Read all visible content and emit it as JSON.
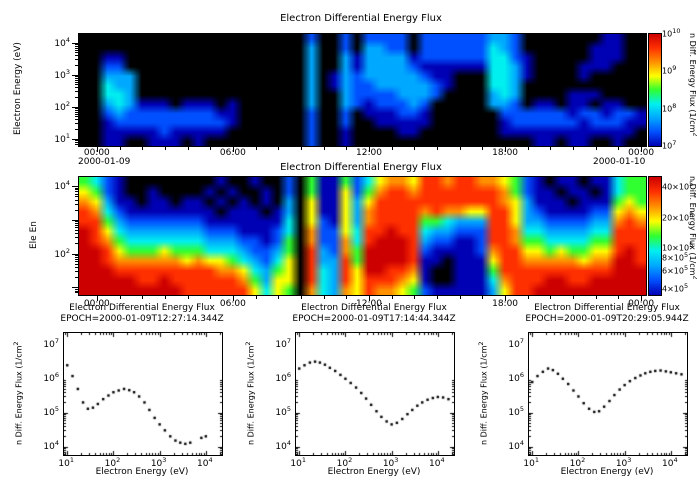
{
  "page": {
    "background": "#ffffff",
    "text_color": "#000000"
  },
  "palette": [
    "#0000b4",
    "#0050ff",
    "#00a8ff",
    "#00f0f0",
    "#30ff30",
    "#ffff00",
    "#ff9000",
    "#ff3000",
    "#cc0000"
  ],
  "chart_data": [
    {
      "id": "top_spectrogram",
      "type": "heatmap",
      "title": "Electron Differential Energy Flux",
      "ylabel": "Electron Energy (eV)",
      "y_axis": {
        "scale": "log",
        "unit": "eV",
        "ticks_exp": [
          4,
          3,
          2,
          1
        ],
        "range_exp": [
          0.8,
          4.3
        ]
      },
      "x_axis": {
        "range_hours": [
          -0.83,
          24.17
        ],
        "ticks": [
          {
            "hour": 0,
            "label": "00:00",
            "date": "2000-01-09"
          },
          {
            "hour": 6,
            "label": "06:00"
          },
          {
            "hour": 12,
            "label": "12:00"
          },
          {
            "hour": 18,
            "label": "18:00"
          },
          {
            "hour": 24,
            "label": "00:00",
            "date": "2000-01-10"
          }
        ]
      },
      "colorbar": {
        "label_text": "n Diff. Energy Flux (1/cm",
        "label_sup": "2",
        "ticks": [
          {
            "mant": null,
            "exp": 10,
            "frac_top": 0.0
          },
          {
            "mant": null,
            "exp": 9,
            "frac_top": 0.333
          },
          {
            "mant": null,
            "exp": 8,
            "frac_top": 0.667
          },
          {
            "mant": null,
            "exp": 7,
            "frac_top": 1.0
          }
        ]
      },
      "grid": [
        "00000000000000000000200202222022222233200000001100",
        "00000000000000000000300203322022222243200000011100",
        "00110000000000000000300313333122222244210000011100",
        "00220000000000000000300313333211111144310000111000",
        "00333000000000000000301323333321100044310000100000",
        "00433000000000000000301322333332100044300000000000",
        "00443000000000000000300322223332000034300001110000",
        "00343111011101000000300321222320000033201101101100",
        "00232222222211000000200201112210000002222221221221",
        "00122222222221000000200200111110000001222222122211",
        "00111112111110000000200100001100000001111111111110",
        "00110011101000000000200100000000000000001101100100"
      ]
    },
    {
      "id": "middle_spectrogram",
      "type": "heatmap",
      "title": "Electron Differential Energy Flux",
      "ylabel": "Ele En",
      "y_axis": {
        "scale": "log",
        "unit": "eV",
        "ticks_exp": [
          4,
          2
        ],
        "range_exp": [
          0.8,
          4.3
        ]
      },
      "x_axis": {
        "range_hours": [
          -0.83,
          24.17
        ],
        "ticks": [
          {
            "hour": 0,
            "label": "00:00"
          },
          {
            "hour": 6,
            "label": "06:00"
          },
          {
            "hour": 12,
            "label": "12:00"
          },
          {
            "hour": 18,
            "label": "18:00"
          },
          {
            "hour": 24,
            "label": "00:00"
          }
        ]
      },
      "colorbar": {
        "label_text": "n Diff. Energy Flux (1/cm",
        "label_sup": "2",
        "ticks": [
          {
            "mant": 40,
            "exp": 5,
            "frac_top": 0.084
          },
          {
            "mant": 20,
            "exp": 5,
            "frac_top": 0.345
          },
          {
            "mant": 10,
            "exp": 5,
            "frac_top": 0.605
          },
          {
            "mant": 8,
            "exp": 5,
            "frac_top": 0.689
          },
          {
            "mant": 6,
            "exp": 5,
            "frac_top": 0.797
          },
          {
            "mant": 4,
            "exp": 5,
            "frac_top": 0.95
          }
        ]
      },
      "grid": [
        "54210000000010010020511524677688788776521011011455",
        "65210010000101001020511625788788888887521101101455",
        "76311011011010101030611636888888888887631110111565",
        "87421111111101110130611637888878776688632111122676",
        "88532222222111111140621637888855433388633222233787",
        "98643333333222111240722648898843322288744333344888",
        "98754444444333221250722748999832211288755444455888",
        "99865556555444322350832759999821111278866565566898",
        "99877777767665432460833859999811011168877777677998",
        "99988888888877643560843869988710011158888888888999",
        "99999889888888753660843868887610011147888998899999",
        "99999999988888864650743768776521111136889999999999"
      ]
    },
    {
      "id": "spectrum_1",
      "type": "scatter",
      "title": "Electron Differential Energy Flux",
      "subtitle": "EPOCH=2000-01-09T12:27:14.344Z",
      "xlabel": "Electron Energy (eV)",
      "ylabel_text": "n Diff. Energy Flux (1/cm",
      "ylabel_sup": "2",
      "x_axis": {
        "scale": "log",
        "ticks_exp": [
          1,
          2,
          3,
          4
        ],
        "range_exp": [
          0.93,
          4.35
        ]
      },
      "y_axis": {
        "scale": "log",
        "ticks_exp": [
          7,
          6,
          5,
          4
        ],
        "range_exp": [
          3.75,
          7.35
        ]
      },
      "x_eV": [
        10,
        13,
        17,
        22,
        28,
        36,
        46,
        60,
        78,
        100,
        130,
        170,
        220,
        280,
        360,
        470,
        600,
        780,
        1000,
        1300,
        1700,
        2200,
        2800,
        3600,
        4600,
        8000,
        10000
      ],
      "y_flux": [
        2500000.0,
        1200000.0,
        500000.0,
        200000.0,
        130000.0,
        140000.0,
        180000.0,
        250000.0,
        320000.0,
        400000.0,
        450000.0,
        500000.0,
        460000.0,
        400000.0,
        300000.0,
        200000.0,
        120000.0,
        70000.0,
        45000.0,
        30000.0,
        20000.0,
        15000.0,
        13000.0,
        12000.0,
        13000.0,
        18000.0,
        20000.0
      ]
    },
    {
      "id": "spectrum_2",
      "type": "scatter",
      "title": "Electron Differential Energy Flux",
      "subtitle": "EPOCH=2000-01-09T17:14:44.344Z",
      "xlabel": "Electron Energy (eV)",
      "ylabel_text": "n Diff. Energy Flux (1/cm",
      "ylabel_sup": "2",
      "x_axis": {
        "scale": "log",
        "ticks_exp": [
          1,
          2,
          3,
          4
        ],
        "range_exp": [
          0.93,
          4.35
        ]
      },
      "y_axis": {
        "scale": "log",
        "ticks_exp": [
          7,
          6,
          5,
          4
        ],
        "range_exp": [
          3.75,
          7.35
        ]
      },
      "x_eV": [
        10,
        13,
        17,
        22,
        28,
        36,
        46,
        60,
        78,
        100,
        130,
        170,
        220,
        280,
        360,
        470,
        600,
        780,
        1000,
        1300,
        1700,
        2200,
        2800,
        3600,
        4600,
        6000,
        7800,
        10000,
        13000,
        17000
      ],
      "y_flux": [
        2000000.0,
        2500000.0,
        3000000.0,
        3200000.0,
        3000000.0,
        2600000.0,
        2100000.0,
        1700000.0,
        1300000.0,
        1000000.0,
        750000.0,
        550000.0,
        380000.0,
        260000.0,
        170000.0,
        110000.0,
        75000.0,
        55000.0,
        45000.0,
        50000.0,
        65000.0,
        90000.0,
        120000.0,
        160000.0,
        200000.0,
        240000.0,
        270000.0,
        290000.0,
        280000.0,
        250000.0
      ]
    },
    {
      "id": "spectrum_3",
      "type": "scatter",
      "title": "Electron Differential Energy Flux",
      "subtitle": "EPOCH=2000-01-09T20:29:05.944Z",
      "xlabel": "Electron Energy (eV)",
      "ylabel_text": "n Diff. Energy Flux (1/cm",
      "ylabel_sup": "2",
      "x_axis": {
        "scale": "log",
        "ticks_exp": [
          1,
          2,
          3,
          4
        ],
        "range_exp": [
          0.93,
          4.35
        ]
      },
      "y_axis": {
        "scale": "log",
        "ticks_exp": [
          7,
          6,
          5,
          4
        ],
        "range_exp": [
          3.75,
          7.35
        ]
      },
      "x_eV": [
        10,
        13,
        17,
        22,
        28,
        36,
        46,
        60,
        78,
        100,
        130,
        170,
        220,
        280,
        360,
        470,
        600,
        780,
        1000,
        1300,
        1700,
        2200,
        2800,
        3600,
        4600,
        6000,
        7800,
        10000,
        13000,
        17000
      ],
      "y_flux": [
        800000.0,
        1200000.0,
        1600000.0,
        2000000.0,
        1800000.0,
        1400000.0,
        1000000.0,
        700000.0,
        450000.0,
        300000.0,
        190000.0,
        130000.0,
        105000.0,
        110000.0,
        150000.0,
        220000.0,
        330000.0,
        480000.0,
        650000.0,
        850000.0,
        1050000.0,
        1250000.0,
        1450000.0,
        1600000.0,
        1700000.0,
        1750000.0,
        1650000.0,
        1550000.0,
        1450000.0,
        1350000.0
      ]
    }
  ]
}
